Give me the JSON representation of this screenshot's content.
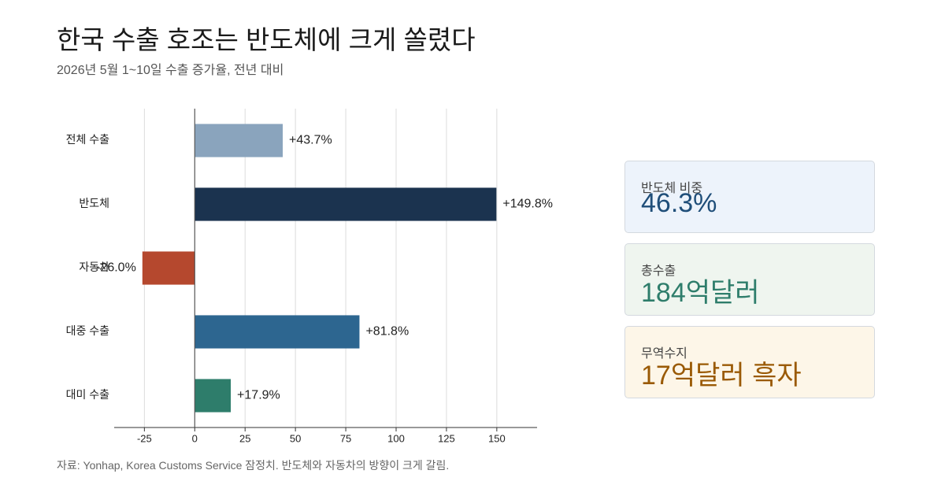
{
  "chart_data": {
    "type": "bar",
    "orientation": "horizontal",
    "title": "한국 수출 호조는 반도체에 크게 쏠렸다",
    "subtitle": "2026년 5월 1~10일 수출 증가율, 전년 대비",
    "source": "자료: Yonhap, Korea Customs Service 잠정치. 반도체와 자동차의 방향이 크게 갈림.",
    "categories": [
      "전체 수출",
      "반도체",
      "자동차",
      "대중 수출",
      "대미 수출"
    ],
    "values": [
      43.7,
      149.8,
      -26.0,
      81.8,
      17.9
    ],
    "value_labels": [
      "+43.7%",
      "+149.8%",
      "-26.0%",
      "+81.8%",
      "+17.9%"
    ],
    "colors": [
      "#8aa4bd",
      "#1b334f",
      "#b5482e",
      "#2d6690",
      "#2e7d6b"
    ],
    "xlim": [
      -40,
      170
    ],
    "xticks": [
      -25,
      0,
      25,
      50,
      75,
      100,
      125,
      150
    ],
    "grid": true
  },
  "cards": [
    {
      "label": "반도체 비중",
      "value": "46.3%"
    },
    {
      "label": "총수출",
      "value": "184억달러"
    },
    {
      "label": "무역수지",
      "value": "17억달러 흑자"
    }
  ]
}
